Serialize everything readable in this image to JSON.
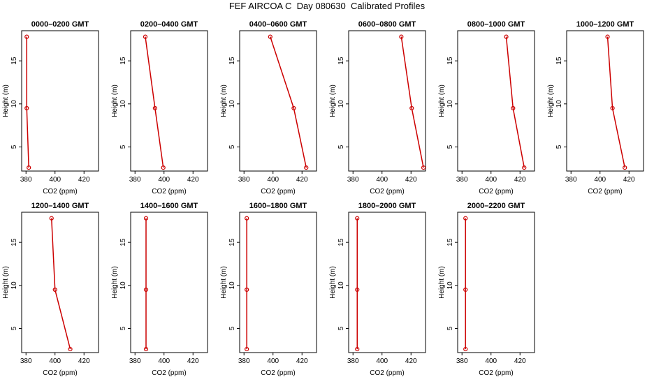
{
  "title": "FEF AIRCOA C  Day 080630  Calibrated Profiles",
  "chart_data": [
    {
      "type": "line",
      "title": "0000–0200 GMT",
      "xlabel": "CO2 (ppm)",
      "ylabel": "Height (m)",
      "xlim": [
        377,
        430
      ],
      "ylim": [
        2.2,
        18.5
      ],
      "xticks": [
        380,
        400,
        420
      ],
      "yticks": [
        5,
        10,
        15
      ],
      "series": [
        {
          "color": "#cc0000",
          "x": [
            380.5,
            380.5,
            381.9
          ],
          "values": [
            17.8,
            9.5,
            2.6
          ]
        }
      ]
    },
    {
      "type": "line",
      "title": "0200–0400 GMT",
      "xlabel": "CO2 (ppm)",
      "ylabel": "Height (m)",
      "xlim": [
        377,
        430
      ],
      "ylim": [
        2.2,
        18.5
      ],
      "xticks": [
        380,
        400,
        420
      ],
      "yticks": [
        5,
        10,
        15
      ],
      "series": [
        {
          "color": "#cc0000",
          "x": [
            387.1,
            393.8,
            399.5
          ],
          "values": [
            17.8,
            9.5,
            2.6
          ]
        }
      ]
    },
    {
      "type": "line",
      "title": "0400–0600 GMT",
      "xlabel": "CO2 (ppm)",
      "ylabel": "Height (m)",
      "xlim": [
        377,
        430
      ],
      "ylim": [
        2.2,
        18.5
      ],
      "xticks": [
        380,
        400,
        420
      ],
      "yticks": [
        5,
        10,
        15
      ],
      "series": [
        {
          "color": "#cc0000",
          "x": [
            398.1,
            414.3,
            422.9
          ],
          "values": [
            17.8,
            9.5,
            2.6
          ]
        }
      ]
    },
    {
      "type": "line",
      "title": "0600–0800 GMT",
      "xlabel": "CO2 (ppm)",
      "ylabel": "Height (m)",
      "xlim": [
        377,
        430
      ],
      "ylim": [
        2.2,
        18.5
      ],
      "xticks": [
        380,
        400,
        420
      ],
      "yticks": [
        5,
        10,
        15
      ],
      "series": [
        {
          "color": "#cc0000",
          "x": [
            413.3,
            420.5,
            428.6
          ],
          "values": [
            17.8,
            9.5,
            2.6
          ]
        }
      ]
    },
    {
      "type": "line",
      "title": "0800–1000 GMT",
      "xlabel": "CO2 (ppm)",
      "ylabel": "Height (m)",
      "xlim": [
        377,
        430
      ],
      "ylim": [
        2.2,
        18.5
      ],
      "xticks": [
        380,
        400,
        420
      ],
      "yticks": [
        5,
        10,
        15
      ],
      "series": [
        {
          "color": "#cc0000",
          "x": [
            410.5,
            415.2,
            422.9
          ],
          "values": [
            17.8,
            9.5,
            2.6
          ]
        }
      ]
    },
    {
      "type": "line",
      "title": "1000–1200 GMT",
      "xlabel": "CO2 (ppm)",
      "ylabel": "Height (m)",
      "xlim": [
        377,
        430
      ],
      "ylim": [
        2.2,
        18.5
      ],
      "xticks": [
        380,
        400,
        420
      ],
      "yticks": [
        5,
        10,
        15
      ],
      "series": [
        {
          "color": "#cc0000",
          "x": [
            405.2,
            408.6,
            417.1
          ],
          "values": [
            17.8,
            9.5,
            2.6
          ]
        }
      ]
    },
    {
      "type": "line",
      "title": "1200–1400 GMT",
      "xlabel": "CO2 (ppm)",
      "ylabel": "Height (m)",
      "xlim": [
        377,
        430
      ],
      "ylim": [
        2.2,
        18.5
      ],
      "xticks": [
        380,
        400,
        420
      ],
      "yticks": [
        5,
        10,
        15
      ],
      "series": [
        {
          "color": "#cc0000",
          "x": [
            397.6,
            400,
            410.5
          ],
          "values": [
            17.8,
            9.5,
            2.6
          ]
        }
      ]
    },
    {
      "type": "line",
      "title": "1400–1600 GMT",
      "xlabel": "CO2 (ppm)",
      "ylabel": "Height (m)",
      "xlim": [
        377,
        430
      ],
      "ylim": [
        2.2,
        18.5
      ],
      "xticks": [
        380,
        400,
        420
      ],
      "yticks": [
        5,
        10,
        15
      ],
      "series": [
        {
          "color": "#cc0000",
          "x": [
            387.6,
            387.6,
            387.6
          ],
          "values": [
            17.8,
            9.5,
            2.6
          ]
        }
      ]
    },
    {
      "type": "line",
      "title": "1600–1800 GMT",
      "xlabel": "CO2 (ppm)",
      "ylabel": "Height (m)",
      "xlim": [
        377,
        430
      ],
      "ylim": [
        2.2,
        18.5
      ],
      "xticks": [
        380,
        400,
        420
      ],
      "yticks": [
        5,
        10,
        15
      ],
      "series": [
        {
          "color": "#cc0000",
          "x": [
            381.9,
            381.9,
            381.9
          ],
          "values": [
            17.8,
            9.5,
            2.6
          ]
        }
      ]
    },
    {
      "type": "line",
      "title": "1800–2000 GMT",
      "xlabel": "CO2 (ppm)",
      "ylabel": "Height (m)",
      "xlim": [
        377,
        430
      ],
      "ylim": [
        2.2,
        18.5
      ],
      "xticks": [
        380,
        400,
        420
      ],
      "yticks": [
        5,
        10,
        15
      ],
      "series": [
        {
          "color": "#cc0000",
          "x": [
            382.9,
            382.9,
            382.9
          ],
          "values": [
            17.8,
            9.5,
            2.6
          ]
        }
      ]
    },
    {
      "type": "line",
      "title": "2000–2200 GMT",
      "xlabel": "CO2 (ppm)",
      "ylabel": "Height (m)",
      "xlim": [
        377,
        430
      ],
      "ylim": [
        2.2,
        18.5
      ],
      "xticks": [
        380,
        400,
        420
      ],
      "yticks": [
        5,
        10,
        15
      ],
      "series": [
        {
          "color": "#cc0000",
          "x": [
            382.4,
            382.4,
            382.4
          ],
          "values": [
            17.8,
            9.5,
            2.6
          ]
        }
      ]
    }
  ]
}
